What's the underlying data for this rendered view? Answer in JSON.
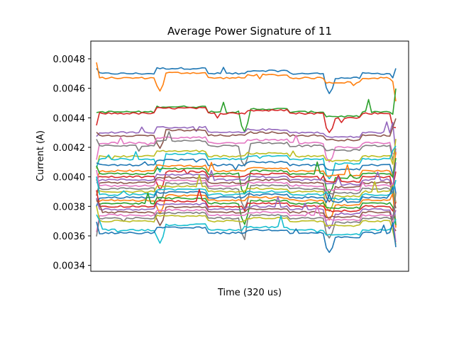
{
  "chart_data": {
    "type": "line",
    "title": "Average Power Signature of 11",
    "xlabel": "Time (320 us)",
    "ylabel": "Current (A)",
    "x_ticks_shown": false,
    "ylim": [
      0.00336,
      0.00492
    ],
    "y_ticks": [
      "0.0034",
      "0.0036",
      "0.0038",
      "0.0040",
      "0.0042",
      "0.0044",
      "0.0046",
      "0.0048"
    ],
    "grid": false,
    "legend": "none",
    "n_points": 100,
    "series_colors": [
      "#1f77b4",
      "#ff7f0e",
      "#2ca02c",
      "#d62728",
      "#9467bd",
      "#8c564b",
      "#e377c2",
      "#7f7f7f",
      "#bcbd22",
      "#17becf"
    ],
    "series_levels": [
      0.0047,
      0.00467,
      0.00444,
      0.00443,
      0.0043,
      0.00428,
      0.00423,
      0.00421,
      0.00414,
      0.00412,
      0.00408,
      0.00404,
      0.00402,
      0.004,
      0.00398,
      0.00396,
      0.00394,
      0.00392,
      0.0039,
      0.00388,
      0.00386,
      0.00384,
      0.00382,
      0.0038,
      0.00378,
      0.00376,
      0.00374,
      0.00372,
      0.0037,
      0.00364,
      0.00362
    ]
  }
}
